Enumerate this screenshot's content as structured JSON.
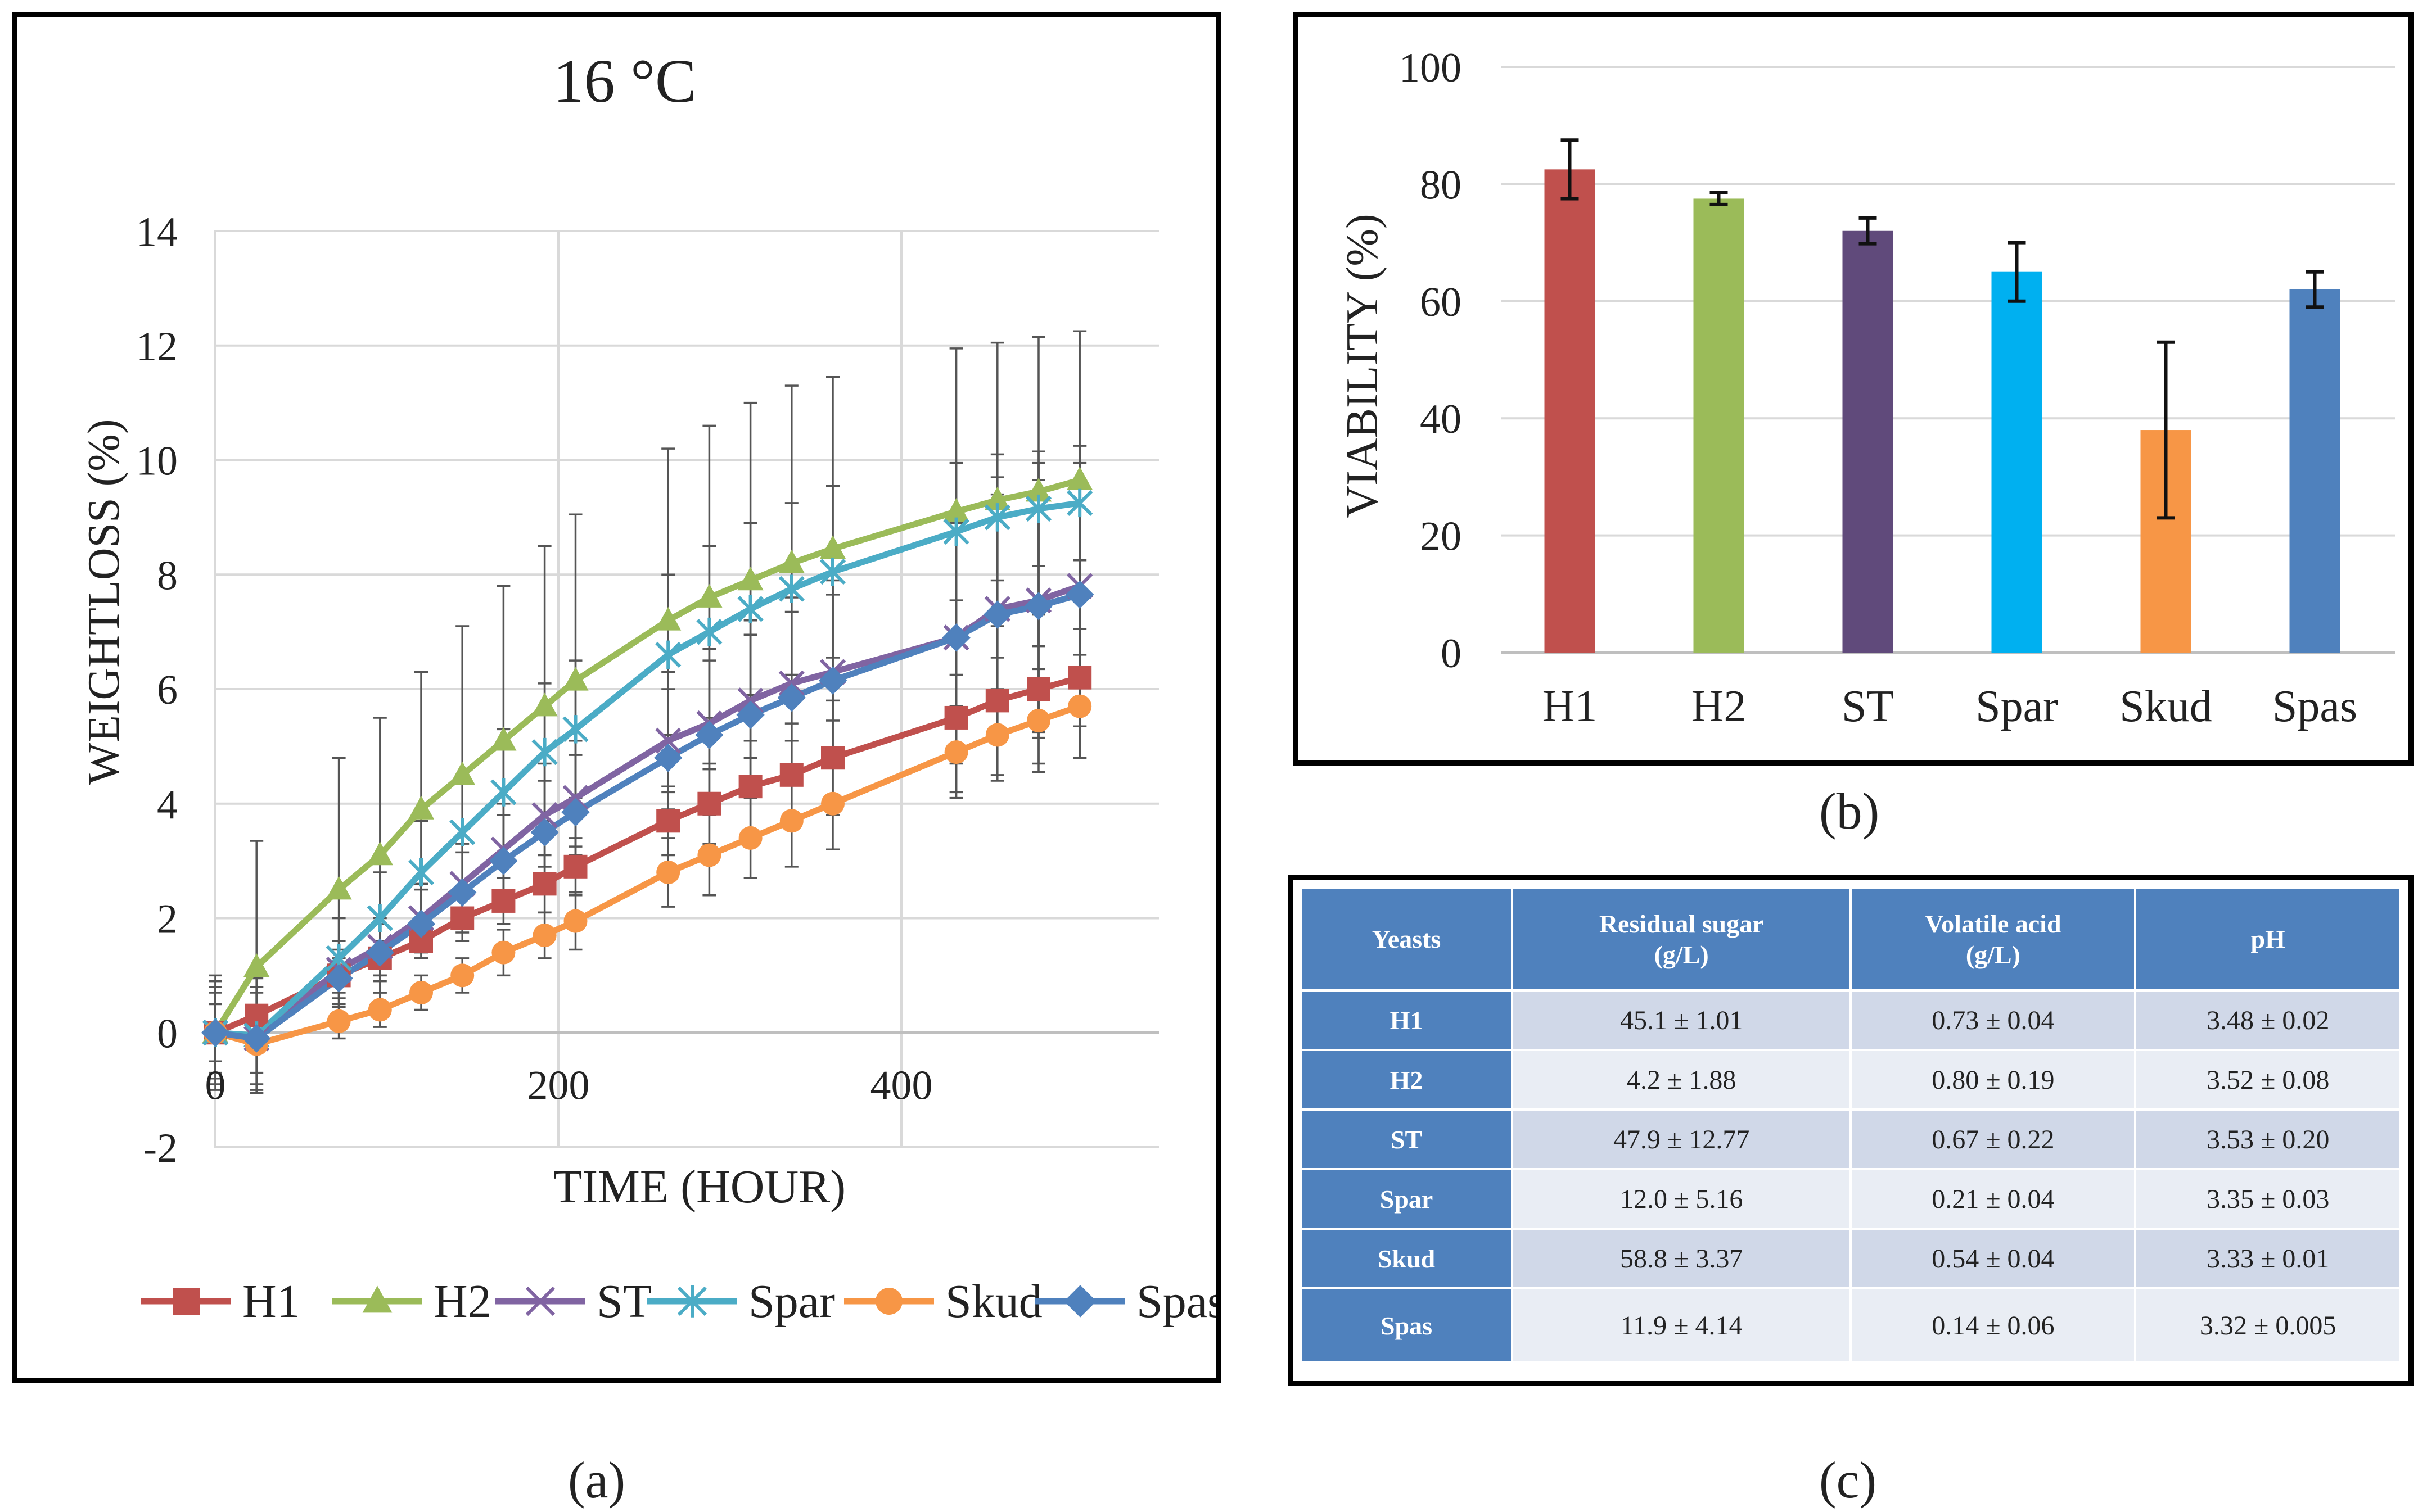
{
  "chart_data": [
    {
      "id": "a",
      "type": "line",
      "panel_label": "(a)",
      "title": "16 °C",
      "xlabel": "TIME (HOUR)",
      "ylabel": "WEIGHTLOSS (%)",
      "xlim": [
        0,
        550
      ],
      "ylim": [
        -2,
        14
      ],
      "x_ticks": [
        0,
        200,
        400
      ],
      "y_ticks": [
        -2,
        0,
        2,
        4,
        6,
        8,
        10,
        12,
        14
      ],
      "x": [
        0,
        24,
        72,
        96,
        120,
        144,
        168,
        192,
        210,
        264,
        288,
        312,
        336,
        360,
        432,
        456,
        480,
        504
      ],
      "series": [
        {
          "name": "H1",
          "color": "#c0504d",
          "marker": "square",
          "values": [
            0,
            0.3,
            1.0,
            1.3,
            1.6,
            2.0,
            2.3,
            2.6,
            2.9,
            3.7,
            4.0,
            4.3,
            4.5,
            4.8,
            5.5,
            5.8,
            6.0,
            6.2
          ],
          "errors": [
            0.5,
            0.5,
            0.3,
            0.3,
            0.3,
            0.4,
            0.4,
            0.5,
            0.5,
            0.6,
            0.7,
            0.8,
            0.9,
            1.0,
            1.3,
            1.3,
            1.3,
            1.4
          ]
        },
        {
          "name": "H2",
          "color": "#9bbb59",
          "marker": "triangle",
          "values": [
            0,
            1.15,
            2.5,
            3.1,
            3.9,
            4.5,
            5.1,
            5.7,
            6.15,
            7.2,
            7.6,
            7.9,
            8.2,
            8.45,
            9.1,
            9.3,
            9.45,
            9.65
          ],
          "errors": [
            1.0,
            2.2,
            2.3,
            2.4,
            2.4,
            2.6,
            2.7,
            2.8,
            2.9,
            3.0,
            3.0,
            3.1,
            3.1,
            3.0,
            2.85,
            2.75,
            2.7,
            2.6
          ]
        },
        {
          "name": "ST",
          "color": "#8064a2",
          "marker": "x",
          "values": [
            0,
            -0.1,
            1.1,
            1.5,
            2.0,
            2.6,
            3.2,
            3.8,
            4.1,
            5.1,
            5.4,
            5.8,
            6.1,
            6.3,
            6.9,
            7.4,
            7.55,
            7.8
          ],
          "errors": [
            0.8,
            0.9,
            0.5,
            0.5,
            0.6,
            0.7,
            0.8,
            0.9,
            1.0,
            1.2,
            1.3,
            1.4,
            1.5,
            1.6,
            2.2,
            2.3,
            2.4,
            2.45
          ]
        },
        {
          "name": "Spar",
          "color": "#4bacc6",
          "marker": "star",
          "values": [
            0,
            -0.05,
            1.3,
            2.0,
            2.8,
            3.5,
            4.2,
            4.9,
            5.3,
            6.6,
            7.0,
            7.4,
            7.75,
            8.05,
            8.75,
            9.0,
            9.15,
            9.25
          ],
          "errors": [
            0.9,
            1.0,
            0.7,
            0.8,
            0.9,
            1.0,
            1.1,
            1.2,
            1.2,
            1.4,
            1.5,
            1.5,
            1.5,
            1.5,
            1.2,
            1.1,
            1.0,
            1.0
          ]
        },
        {
          "name": "Skud",
          "color": "#f79646",
          "marker": "circle",
          "values": [
            0,
            -0.2,
            0.2,
            0.4,
            0.7,
            1.0,
            1.4,
            1.7,
            1.95,
            2.8,
            3.1,
            3.4,
            3.7,
            4.0,
            4.9,
            5.2,
            5.45,
            5.7
          ],
          "errors": [
            0.5,
            0.5,
            0.3,
            0.3,
            0.3,
            0.3,
            0.4,
            0.4,
            0.5,
            0.6,
            0.7,
            0.7,
            0.8,
            0.8,
            0.8,
            0.8,
            0.9,
            0.9
          ]
        },
        {
          "name": "Spas",
          "color": "#4f81bd",
          "marker": "diamond",
          "values": [
            0,
            -0.1,
            0.95,
            1.4,
            1.9,
            2.45,
            3.0,
            3.5,
            3.85,
            4.8,
            5.2,
            5.55,
            5.85,
            6.15,
            6.9,
            7.3,
            7.45,
            7.65
          ],
          "errors": [
            0.7,
            0.8,
            0.5,
            0.5,
            0.6,
            0.7,
            0.8,
            0.9,
            1.0,
            1.2,
            1.3,
            1.4,
            1.5,
            1.5,
            2.0,
            2.1,
            2.2,
            2.3
          ]
        }
      ],
      "legend": "bottom"
    },
    {
      "id": "b",
      "type": "bar",
      "panel_label": "(b)",
      "title": "",
      "xlabel": "",
      "ylabel": "VIABILITY (%)",
      "ylim": [
        0,
        100
      ],
      "y_ticks": [
        0,
        20,
        40,
        60,
        80,
        100
      ],
      "categories": [
        "H1",
        "H2",
        "ST",
        "Spar",
        "Skud",
        "Spas"
      ],
      "values": [
        82.5,
        77.5,
        72,
        65,
        38,
        62
      ],
      "errors": [
        5,
        1,
        2.2,
        5,
        15,
        3
      ],
      "colors": [
        "#c0504d",
        "#9bbb59",
        "#604a7b",
        "#00b0f0",
        "#f79646",
        "#4f81bd"
      ]
    }
  ],
  "table_c": {
    "panel_label": "(c)",
    "headers": [
      "Yeasts",
      "Residual sugar\n(g/L)",
      "Volatile acid\n(g/L)",
      "pH"
    ],
    "rows": [
      [
        "H1",
        "45.1 ± 1.01",
        "0.73 ± 0.04",
        "3.48 ± 0.02"
      ],
      [
        "H2",
        "4.2 ± 1.88",
        "0.80 ± 0.19",
        "3.52 ± 0.08"
      ],
      [
        "ST",
        "47.9 ± 12.77",
        "0.67 ± 0.22",
        "3.53 ± 0.20"
      ],
      [
        "Spar",
        "12.0 ± 5.16",
        "0.21 ± 0.04",
        "3.35 ± 0.03"
      ],
      [
        "Skud",
        "58.8 ± 3.37",
        "0.54 ± 0.04",
        "3.33 ± 0.01"
      ],
      [
        "Spas",
        "11.9 ± 4.14",
        "0.14 ± 0.06",
        "3.32 ± 0.005"
      ]
    ]
  }
}
